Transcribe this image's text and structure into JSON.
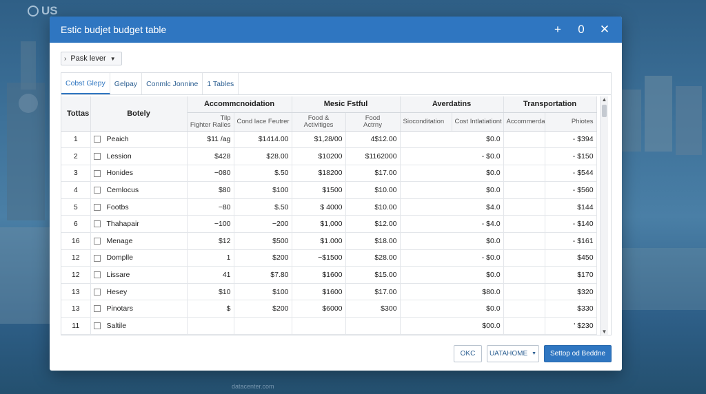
{
  "background": {
    "logo_text": "US",
    "bottom_caption": "datacenter.com"
  },
  "dialog": {
    "title": "Estic budjet budget table",
    "controls": {
      "add": "+",
      "minimize": "0",
      "close": "✕"
    }
  },
  "toolbar": {
    "dropdown_label": "Pask lever"
  },
  "tabs": [
    "Cobst Glepy",
    "Gelpay",
    "Conmlc Jonnine",
    "1 Tables"
  ],
  "table": {
    "header_totals": "Tottas",
    "header_details": "Botely",
    "groups": [
      "Accommcnoidation",
      "Mesic Fstful",
      "Averdatins",
      "Transportation"
    ],
    "subheaders": [
      "Tilp\nFighter Ralles",
      "Cond lace Feutrer",
      "Food &\nActivitiges",
      "Food\nActrny",
      "Sioconditation",
      "Cost Intlatiationt",
      "Accommerdation",
      "Phiotes"
    ],
    "rows": [
      {
        "idx": "1",
        "name": "Peaich",
        "c1": "$11 /ag",
        "c2": "$1414.00",
        "c3": "$1,28/00",
        "c4": "4$12.00",
        "c5": "$0.0",
        "c6": "- $394"
      },
      {
        "idx": "2",
        "name": "Lession",
        "c1": "$428",
        "c2": "$28.00",
        "c3": "$10200",
        "c4": "$1162000",
        "c5": "- $0.0",
        "c6": "- $150"
      },
      {
        "idx": "3",
        "name": "Honides",
        "c1": "−080",
        "c2": "$.50",
        "c3": "$18200",
        "c4": "$17.00",
        "c5": "$0.0",
        "c6": "- $544"
      },
      {
        "idx": "4",
        "name": "Cemlocus",
        "c1": "$80",
        "c2": "$100",
        "c3": "$1500",
        "c4": "$10.00",
        "c5": "$0.0",
        "c6": "- $560"
      },
      {
        "idx": "5",
        "name": "Footbs",
        "c1": "−80",
        "c2": "$.50",
        "c3": "$ 4000",
        "c4": "$10.00",
        "c5": "$4.0",
        "c6": "$144"
      },
      {
        "idx": "6",
        "name": "Thahapair",
        "c1": "−100",
        "c2": "−200",
        "c3": "$1,000",
        "c4": "$12.00",
        "c5": "- $4.0",
        "c6": "- $140"
      },
      {
        "idx": "16",
        "name": "Menage",
        "c1": "$12",
        "c2": "$500",
        "c3": "$1.000",
        "c4": "$18.00",
        "c5": "$0.0",
        "c6": "- $161"
      },
      {
        "idx": "12",
        "name": "Domplle",
        "c1": "1",
        "c2": "$200",
        "c3": "−$1500",
        "c4": "$28.00",
        "c5": "- $0.0",
        "c6": "$450"
      },
      {
        "idx": "12",
        "name": "Lissare",
        "c1": "41",
        "c2": "$7.80",
        "c3": "$1600",
        "c4": "$15.00",
        "c5": "$0.0",
        "c6": "$170"
      },
      {
        "idx": "13",
        "name": "Hesey",
        "c1": "$10",
        "c2": "$100",
        "c3": "$1600",
        "c4": "$17.00",
        "c5": "$80.0",
        "c6": "$320"
      },
      {
        "idx": "13",
        "name": "Pinotars",
        "c1": "$",
        "c2": "$200",
        "c3": "$6000",
        "c4": "$300",
        "c5": "$0.0",
        "c6": "$330"
      },
      {
        "idx": "11",
        "name": "Saltile",
        "c1": "",
        "c2": "",
        "c3": "",
        "c4": "",
        "c5": "$00.0",
        "c6": "' $230"
      }
    ]
  },
  "footer": {
    "ok_label": "OKC",
    "middle_label": "UATAHOME",
    "primary_label": "Settop od Beddne"
  },
  "colors": {
    "accent": "#2f76c1",
    "background": "#3d7199"
  }
}
